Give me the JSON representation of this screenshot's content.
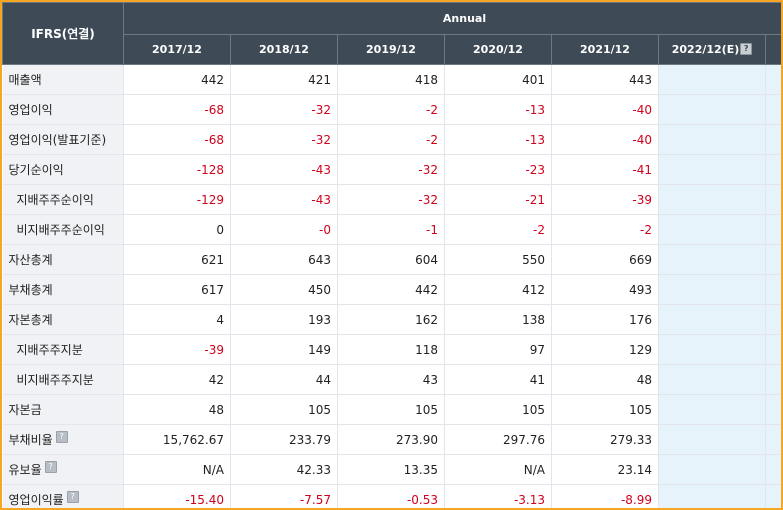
{
  "header": {
    "corner_label": "IFRS(연결)",
    "group_label": "Annual",
    "years": [
      "2017/12",
      "2018/12",
      "2019/12",
      "2020/12",
      "2021/12"
    ],
    "estimate_year": "2022/12(E)",
    "help_glyph": "?"
  },
  "rows": [
    {
      "label": "매출액",
      "indent": false,
      "help": false,
      "values": [
        "442",
        "421",
        "418",
        "401",
        "443"
      ]
    },
    {
      "label": "영업이익",
      "indent": false,
      "help": false,
      "values": [
        "-68",
        "-32",
        "-2",
        "-13",
        "-40"
      ]
    },
    {
      "label": "영업이익(발표기준)",
      "indent": false,
      "help": false,
      "values": [
        "-68",
        "-32",
        "-2",
        "-13",
        "-40"
      ]
    },
    {
      "label": "당기순이익",
      "indent": false,
      "help": false,
      "values": [
        "-128",
        "-43",
        "-32",
        "-23",
        "-41"
      ]
    },
    {
      "label": "지배주주순이익",
      "indent": true,
      "help": false,
      "values": [
        "-129",
        "-43",
        "-32",
        "-21",
        "-39"
      ]
    },
    {
      "label": "비지배주주순이익",
      "indent": true,
      "help": false,
      "values": [
        "0",
        "-0",
        "-1",
        "-2",
        "-2"
      ]
    },
    {
      "label": "자산총계",
      "indent": false,
      "help": false,
      "values": [
        "621",
        "643",
        "604",
        "550",
        "669"
      ]
    },
    {
      "label": "부채총계",
      "indent": false,
      "help": false,
      "values": [
        "617",
        "450",
        "442",
        "412",
        "493"
      ]
    },
    {
      "label": "자본총계",
      "indent": false,
      "help": false,
      "values": [
        "4",
        "193",
        "162",
        "138",
        "176"
      ]
    },
    {
      "label": "지배주주지분",
      "indent": true,
      "help": false,
      "values": [
        "-39",
        "149",
        "118",
        "97",
        "129"
      ]
    },
    {
      "label": "비지배주주지분",
      "indent": true,
      "help": false,
      "values": [
        "42",
        "44",
        "43",
        "41",
        "48"
      ]
    },
    {
      "label": "자본금",
      "indent": false,
      "help": false,
      "values": [
        "48",
        "105",
        "105",
        "105",
        "105"
      ]
    },
    {
      "label": "부채비율",
      "indent": false,
      "help": true,
      "values": [
        "15,762.67",
        "233.79",
        "273.90",
        "297.76",
        "279.33"
      ]
    },
    {
      "label": "유보율",
      "indent": false,
      "help": true,
      "values": [
        "N/A",
        "42.33",
        "13.35",
        "N/A",
        "23.14"
      ]
    },
    {
      "label": "영업이익률",
      "indent": false,
      "help": true,
      "values": [
        "-15.40",
        "-7.57",
        "-0.53",
        "-3.13",
        "-8.99"
      ]
    }
  ],
  "colors": {
    "header_bg": "#3e4a56",
    "negative": "#d0021b",
    "estimate_bg": "#e6f3fa",
    "frame": "#f5a623"
  }
}
